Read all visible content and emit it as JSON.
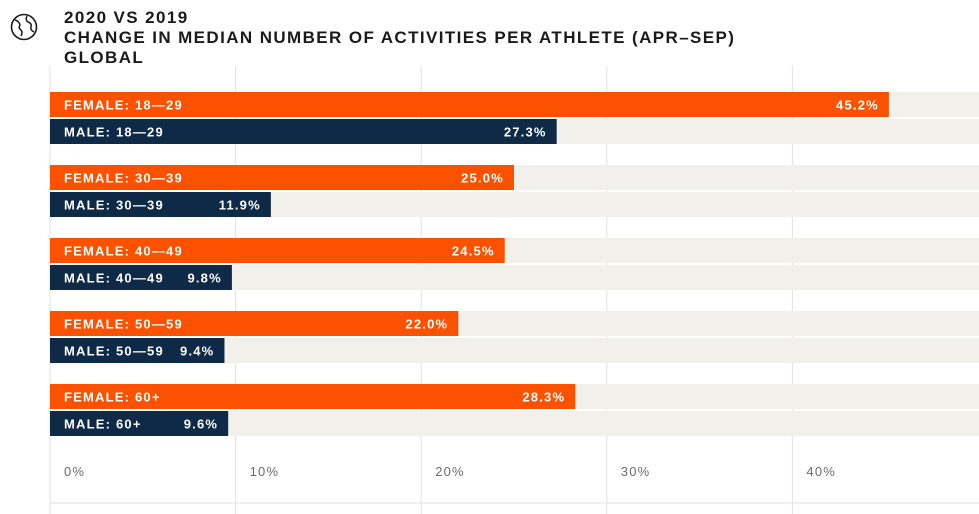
{
  "header": {
    "title": "2020 VS 2019",
    "subtitle": "CHANGE IN MEDIAN NUMBER OF ACTIVITIES PER ATHLETE (APR–SEP)",
    "region": "GLOBAL",
    "icon": "globe-icon"
  },
  "colors": {
    "female": "#fc5200",
    "male": "#0e2a47",
    "track": "#f1f0ea",
    "grid": "#e2e2e2"
  },
  "chart_data": {
    "type": "bar",
    "orientation": "horizontal",
    "categories": [
      "FEMALE: 18—29",
      "MALE: 18—29",
      "FEMALE: 30—39",
      "MALE: 30—39",
      "FEMALE: 40—49",
      "MALE: 40—49",
      "FEMALE: 50—59",
      "MALE: 50—59",
      "FEMALE: 60+",
      "MALE: 60+"
    ],
    "values": [
      45.2,
      27.3,
      25.0,
      11.9,
      24.5,
      9.8,
      22.0,
      9.4,
      28.3,
      9.6
    ],
    "value_labels": [
      "45.2%",
      "27.3%",
      "25.0%",
      "11.9%",
      "24.5%",
      "9.8%",
      "22.0%",
      "9.4%",
      "28.3%",
      "9.6%"
    ],
    "groups": [
      "female",
      "male",
      "female",
      "male",
      "female",
      "male",
      "female",
      "male",
      "female",
      "male"
    ],
    "x_ticks": [
      0,
      10,
      20,
      30,
      40
    ],
    "x_tick_labels": [
      "0%",
      "10%",
      "20%",
      "30%",
      "40%"
    ],
    "xlim": [
      0,
      50
    ],
    "grid": true,
    "title": "2020 VS 2019",
    "subtitle": "CHANGE IN MEDIAN NUMBER OF ACTIVITIES PER ATHLETE (APR–SEP)"
  }
}
